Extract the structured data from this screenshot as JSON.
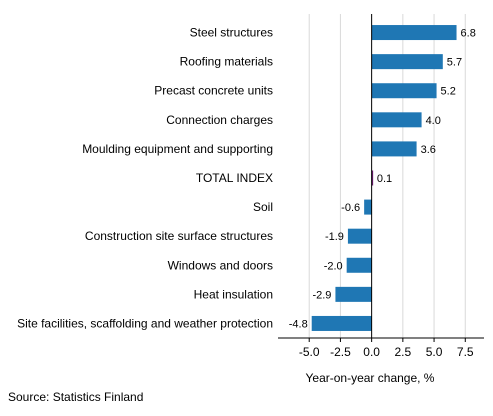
{
  "chart_data": {
    "type": "bar",
    "orientation": "horizontal",
    "categories": [
      "Steel structures",
      "Roofing materials",
      "Precast concrete units",
      "Connection charges",
      "Moulding equipment and supporting",
      "TOTAL INDEX",
      "Soil",
      "Construction site surface structures",
      "Windows and doors",
      "Heat insulation",
      "Site facilities, scaffolding and weather protection"
    ],
    "values": [
      6.8,
      5.7,
      5.2,
      4.0,
      3.6,
      0.1,
      -0.6,
      -1.9,
      -2.0,
      -2.9,
      -4.8
    ],
    "value_labels": [
      "6.8",
      "5.7",
      "5.2",
      "4.0",
      "3.6",
      "0.1",
      "-0.6",
      "-1.9",
      "-2.0",
      "-2.9",
      "-4.8"
    ],
    "xlabel": "Year-on-year change, %",
    "xlim": [
      -7.5,
      9.0
    ],
    "xticks": [
      -5.0,
      -2.5,
      0.0,
      2.5,
      5.0,
      7.5
    ],
    "xtick_labels": [
      "-5.0",
      "-2.5",
      "0.0",
      "2.5",
      "5.0",
      "7.5"
    ],
    "grid": "vertical gridlines",
    "colors": {
      "bar": "#1f77b4",
      "total_bar": "#6a1b6e",
      "grid": "#d9d9d9",
      "axis": "#000000"
    },
    "highlight_category": "TOTAL INDEX"
  },
  "footer": {
    "source": "Source: Statistics Finland"
  }
}
